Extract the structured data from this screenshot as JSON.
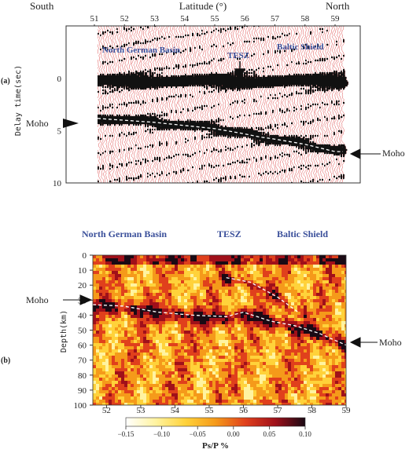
{
  "panel_a": {
    "panel_label": "(a)",
    "left_label": "South",
    "center_label": "Latitude (°)",
    "right_label": "North",
    "y_axis_label": "Delay time(sec)",
    "region_labels": [
      "North German Basin",
      "TESZ",
      "Baltic Shield"
    ],
    "moho_left": "Moho",
    "moho_right": "Moho",
    "x_ticks": [
      "51",
      "52",
      "53",
      "54",
      "55",
      "56",
      "57",
      "58",
      "59"
    ],
    "y_ticks": [
      "0",
      "5",
      "10"
    ]
  },
  "panel_b": {
    "panel_label": "(b)",
    "y_axis_label": "Depth(km)",
    "region_labels": [
      "North German Basin",
      "TESZ",
      "Baltic Shield"
    ],
    "moho_left": "Moho",
    "moho_right": "Moho",
    "x_ticks": [
      "52",
      "53",
      "54",
      "55",
      "56",
      "57",
      "58",
      "59"
    ],
    "y_ticks": [
      "0",
      "10",
      "20",
      "30",
      "40",
      "50",
      "60",
      "70",
      "80",
      "90",
      "100"
    ]
  },
  "colorbar": {
    "ticks": [
      "−0.15",
      "−0.10",
      "−0.05",
      "0.00",
      "0.05",
      "0.10"
    ],
    "label": "Ps/P %",
    "colors": [
      "#ffffff",
      "#fff3a0",
      "#ffd23a",
      "#f59a1a",
      "#e0401c",
      "#a0101a",
      "#1a0a14"
    ]
  },
  "chart_data": [
    {
      "type": "line",
      "title": "",
      "xlabel": "Latitude (°)",
      "ylabel": "Delay time(sec)",
      "xlim": [
        51,
        59
      ],
      "ylim": [
        10,
        -3
      ],
      "series": [
        {
          "x": [
            51.0,
            52.0,
            53.0,
            54.0,
            55.0,
            55.8,
            56.5,
            57.0,
            58.0,
            59.0
          ],
          "values": [
            3.8,
            4.0,
            4.2,
            4.5,
            4.8,
            5.2,
            5.6,
            5.8,
            6.3,
            7.0
          ]
        }
      ]
    },
    {
      "type": "heatmap",
      "title": "",
      "xlabel": "",
      "ylabel": "Depth(km)",
      "xlim": [
        51.6,
        59
      ],
      "ylim": [
        100,
        0
      ],
      "colorbar_range": [
        -0.15,
        0.1
      ],
      "colorbar_label": "Ps/P %",
      "series": [
        {
          "x": [
            51.6,
            52.5,
            53.5,
            54.5,
            55.5,
            56.0,
            56.8,
            57.5,
            58.2,
            59.0
          ],
          "values": [
            33,
            34,
            38,
            40,
            41,
            38,
            44,
            47,
            52,
            60
          ]
        },
        {
          "x": [
            55.5,
            56.2,
            57.0,
            57.6
          ],
          "values": [
            15,
            18,
            28,
            38
          ]
        }
      ]
    }
  ]
}
